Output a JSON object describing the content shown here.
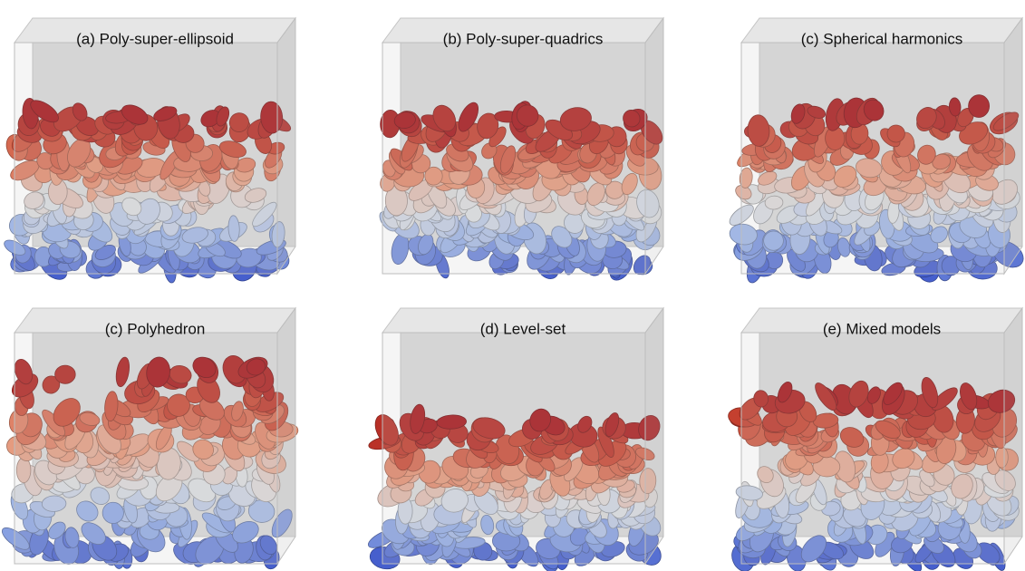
{
  "panels": [
    {
      "label": "(a) Poly-super-ellipsoid"
    },
    {
      "label": "(b) Poly-super-quadrics"
    },
    {
      "label": "(c) Spherical harmonics"
    },
    {
      "label": "(c) Polyhedron"
    },
    {
      "label": "(d) Level-set"
    },
    {
      "label": "(e) Mixed models"
    }
  ]
}
